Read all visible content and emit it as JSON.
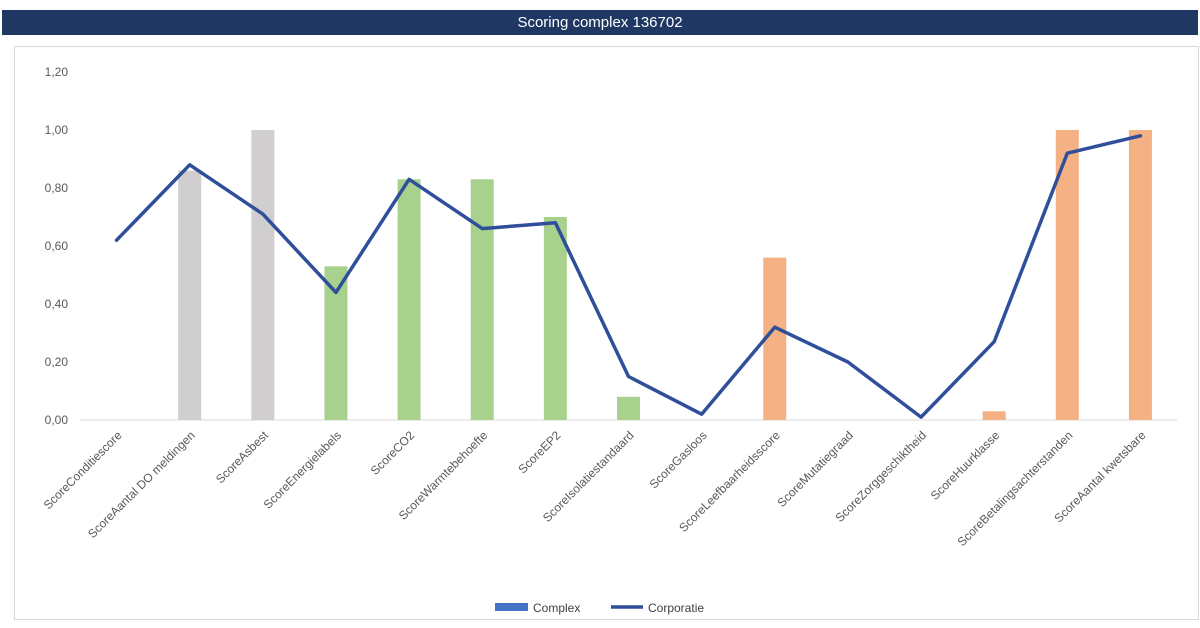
{
  "chart_data": {
    "type": "bar",
    "title": "Scoring complex 136702",
    "categories": [
      "ScoreConditiescore",
      "ScoreAantal DO meldingen",
      "ScoreAsbest",
      "ScoreEnergielabels",
      "ScoreCO2",
      "ScoreWarmtebehoefte",
      "ScoreEP2",
      "ScoreIsolatiestandaard",
      "ScoreGasloos",
      "ScoreLeefbaarheidsscore",
      "ScoreMutatiegraad",
      "ScoreZorggeschiktheid",
      "ScoreHuurklasse",
      "ScoreBetalingsachterstanden",
      "ScoreAantal kwetsbare"
    ],
    "series": [
      {
        "name": "Complex",
        "type": "bar",
        "values": [
          0.0,
          0.86,
          1.0,
          0.53,
          0.83,
          0.83,
          0.7,
          0.08,
          0.0,
          0.56,
          0.0,
          0.0,
          0.03,
          1.0,
          1.0
        ],
        "bar_colors": [
          "#d0cece",
          "#d0cece",
          "#d0cece",
          "#a9d18e",
          "#a9d18e",
          "#a9d18e",
          "#a9d18e",
          "#a9d18e",
          "#a9d18e",
          "#f4b183",
          "#f4b183",
          "#f4b183",
          "#f4b183",
          "#f4b183",
          "#f4b183"
        ],
        "legend_color": "#4472c4"
      },
      {
        "name": "Corporatie",
        "type": "line",
        "values": [
          0.62,
          0.88,
          0.71,
          0.44,
          0.83,
          0.66,
          0.68,
          0.15,
          0.02,
          0.32,
          0.2,
          0.01,
          0.27,
          0.92,
          0.98
        ],
        "color": "#2f4f9a"
      }
    ],
    "y_ticks": [
      "0,00",
      "0,20",
      "0,40",
      "0,60",
      "0,80",
      "1,00",
      "1,20"
    ],
    "ylim": [
      0,
      1.2
    ],
    "grid": false,
    "legend_position": "bottom"
  }
}
